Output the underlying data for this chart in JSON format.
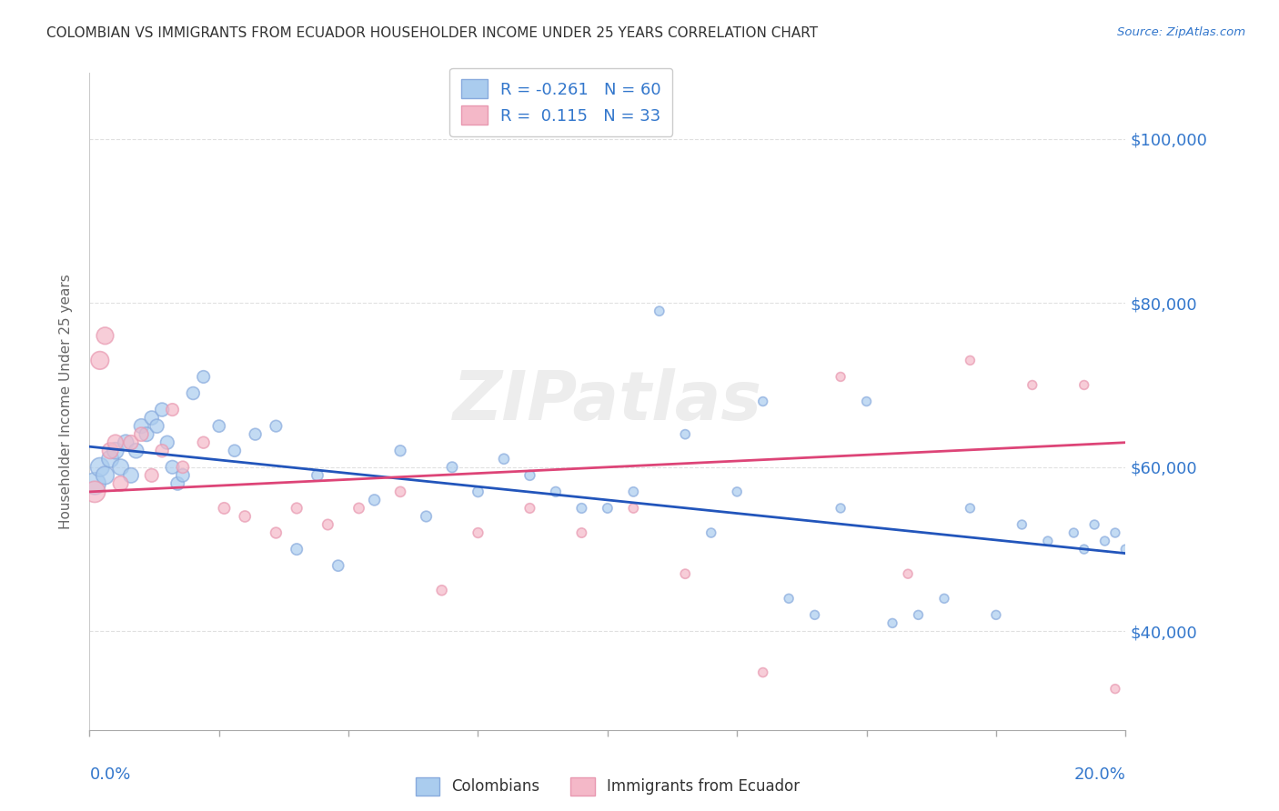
{
  "title": "COLOMBIAN VS IMMIGRANTS FROM ECUADOR HOUSEHOLDER INCOME UNDER 25 YEARS CORRELATION CHART",
  "source": "Source: ZipAtlas.com",
  "ylabel": "Householder Income Under 25 years",
  "legend_label1": "Colombians",
  "legend_label2": "Immigrants from Ecuador",
  "R1": -0.261,
  "N1": 60,
  "R2": 0.115,
  "N2": 33,
  "blue_fill": "#aaccee",
  "blue_edge": "#88aadd",
  "pink_fill": "#f4b8c8",
  "pink_edge": "#e898b0",
  "blue_line_color": "#2255bb",
  "pink_line_color": "#dd4477",
  "axis_color": "#3377cc",
  "watermark": "ZIPatlas",
  "blue_x": [
    0.001,
    0.002,
    0.003,
    0.004,
    0.005,
    0.006,
    0.007,
    0.008,
    0.009,
    0.01,
    0.011,
    0.012,
    0.013,
    0.014,
    0.015,
    0.016,
    0.017,
    0.018,
    0.02,
    0.022,
    0.025,
    0.028,
    0.032,
    0.036,
    0.04,
    0.044,
    0.048,
    0.055,
    0.06,
    0.065,
    0.07,
    0.075,
    0.08,
    0.085,
    0.09,
    0.095,
    0.1,
    0.105,
    0.11,
    0.115,
    0.12,
    0.125,
    0.13,
    0.135,
    0.14,
    0.145,
    0.15,
    0.155,
    0.16,
    0.165,
    0.17,
    0.175,
    0.18,
    0.185,
    0.19,
    0.192,
    0.194,
    0.196,
    0.198,
    0.2
  ],
  "blue_y": [
    58000,
    60000,
    59000,
    61000,
    62000,
    60000,
    63000,
    59000,
    62000,
    65000,
    64000,
    66000,
    65000,
    67000,
    63000,
    60000,
    58000,
    59000,
    69000,
    71000,
    65000,
    62000,
    64000,
    65000,
    50000,
    59000,
    48000,
    56000,
    62000,
    54000,
    60000,
    57000,
    61000,
    59000,
    57000,
    55000,
    55000,
    57000,
    79000,
    64000,
    52000,
    57000,
    68000,
    44000,
    42000,
    55000,
    68000,
    41000,
    42000,
    44000,
    55000,
    42000,
    53000,
    51000,
    52000,
    50000,
    53000,
    51000,
    52000,
    50000
  ],
  "pink_x": [
    0.001,
    0.002,
    0.003,
    0.004,
    0.005,
    0.006,
    0.008,
    0.01,
    0.012,
    0.014,
    0.016,
    0.018,
    0.022,
    0.026,
    0.03,
    0.036,
    0.04,
    0.046,
    0.052,
    0.06,
    0.068,
    0.075,
    0.085,
    0.095,
    0.105,
    0.115,
    0.13,
    0.145,
    0.158,
    0.17,
    0.182,
    0.192,
    0.198
  ],
  "pink_y": [
    57000,
    73000,
    76000,
    62000,
    63000,
    58000,
    63000,
    64000,
    59000,
    62000,
    67000,
    60000,
    63000,
    55000,
    54000,
    52000,
    55000,
    53000,
    55000,
    57000,
    45000,
    52000,
    55000,
    52000,
    55000,
    47000,
    35000,
    71000,
    47000,
    73000,
    70000,
    70000,
    33000
  ],
  "blue_sizes": [
    300,
    220,
    200,
    180,
    170,
    160,
    150,
    140,
    135,
    130,
    125,
    120,
    118,
    115,
    112,
    110,
    108,
    106,
    100,
    95,
    90,
    88,
    85,
    82,
    80,
    78,
    76,
    74,
    72,
    70,
    68,
    66,
    64,
    62,
    60,
    58,
    56,
    55,
    54,
    53,
    52,
    51,
    50,
    50,
    50,
    50,
    50,
    50,
    50,
    50,
    50,
    50,
    50,
    50,
    50,
    50,
    50,
    50,
    50,
    50
  ],
  "pink_sizes": [
    280,
    200,
    180,
    160,
    150,
    140,
    130,
    120,
    110,
    100,
    95,
    90,
    85,
    80,
    76,
    72,
    70,
    68,
    66,
    64,
    62,
    60,
    58,
    56,
    55,
    54,
    52,
    50,
    50,
    50,
    50,
    50,
    50
  ],
  "xlim": [
    0.0,
    0.2
  ],
  "ylim": [
    28000,
    108000
  ],
  "yticks": [
    40000,
    60000,
    80000,
    100000
  ],
  "ytick_labels": [
    "$40,000",
    "$60,000",
    "$80,000",
    "$100,000"
  ],
  "xticks": [
    0.0,
    0.025,
    0.05,
    0.075,
    0.1,
    0.125,
    0.15,
    0.175,
    0.2
  ],
  "blue_trend_x": [
    0.0,
    0.2
  ],
  "blue_trend_y": [
    62500,
    49500
  ],
  "pink_trend_x": [
    0.0,
    0.2
  ],
  "pink_trend_y": [
    57000,
    63000
  ],
  "grid_color": "#dddddd"
}
